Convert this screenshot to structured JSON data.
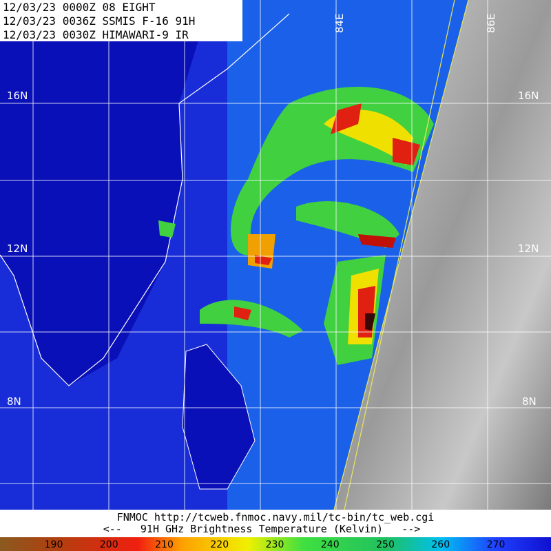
{
  "header": {
    "lines": [
      "12/03/23 0000Z  08 EIGHT",
      "12/03/23 0036Z  SSMIS F-16 91H",
      "12/03/23 0030Z  HIMAWARI-9 IR"
    ]
  },
  "grid": {
    "lat_labels": [
      "16N",
      "12N",
      "8N"
    ],
    "lon_labels": [
      "84E",
      "86E"
    ]
  },
  "footer": {
    "source": "FNMOC  http://tcweb.fnmoc.navy.mil/tc-bin/tc_web.cgi",
    "caption": "<--   91H GHz Brightness Temperature (Kelvin)   -->"
  },
  "colorbar": {
    "ticks": [
      190,
      200,
      210,
      220,
      230,
      240,
      250,
      260,
      270
    ]
  }
}
